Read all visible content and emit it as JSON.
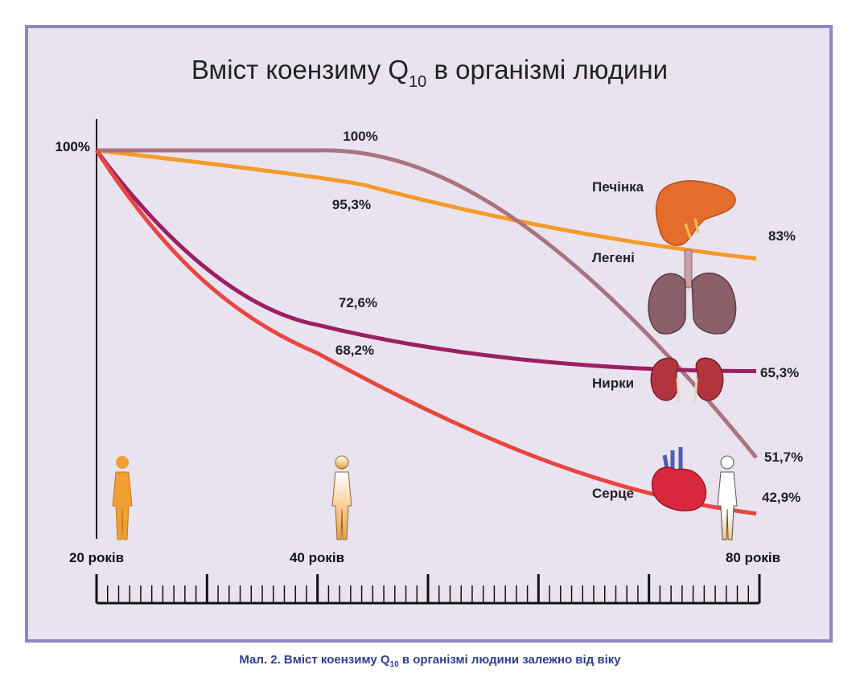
{
  "chart_data": {
    "type": "line",
    "title": "Вміст коензиму Q",
    "title_subscript": "10",
    "title_suffix": " в організмі людини",
    "y_start_label": "100%",
    "x_labels": [
      "20 років",
      "40 років",
      "80 років"
    ],
    "x": [
      20,
      40,
      80
    ],
    "xlim": [
      20,
      80
    ],
    "series": [
      {
        "name": "Печінка",
        "color": "#f59a2b",
        "points": [
          [
            20,
            100
          ],
          [
            40,
            95.3
          ],
          [
            80,
            83
          ]
        ],
        "labels": [
          "95,3%",
          "83%"
        ]
      },
      {
        "name": "Легені",
        "color": "#a9737f",
        "points": [
          [
            20,
            100
          ],
          [
            40,
            100
          ],
          [
            80,
            51.7
          ]
        ],
        "labels": [
          "100%",
          "51,7%"
        ]
      },
      {
        "name": "Нирки",
        "color": "#9c1f63",
        "points": [
          [
            20,
            100
          ],
          [
            40,
            72.6
          ],
          [
            80,
            65.3
          ]
        ],
        "labels": [
          "72,6%",
          "65,3%"
        ]
      },
      {
        "name": "Серце",
        "color": "#e8463f",
        "points": [
          [
            20,
            100
          ],
          [
            40,
            68.2
          ],
          [
            80,
            42.9
          ]
        ],
        "labels": [
          "68,2%",
          "42,9%"
        ]
      }
    ],
    "grid": false,
    "legend": "labels next to organ icons on the right"
  },
  "organ_icons": [
    "liver-icon",
    "lungs-icon",
    "kidneys-icon",
    "heart-icon"
  ],
  "person_icons": [
    "person-20-icon",
    "person-40-icon",
    "person-80-icon"
  ],
  "colors": {
    "background": "#e9e3f0",
    "frame": "#8d86c2",
    "text": "#222222",
    "caption": "#2f3f8f"
  },
  "caption": {
    "prefix": "Мал. 2. Вміст коензиму Q",
    "subscript": "10",
    "suffix": " в організмі людини залежно від віку"
  }
}
